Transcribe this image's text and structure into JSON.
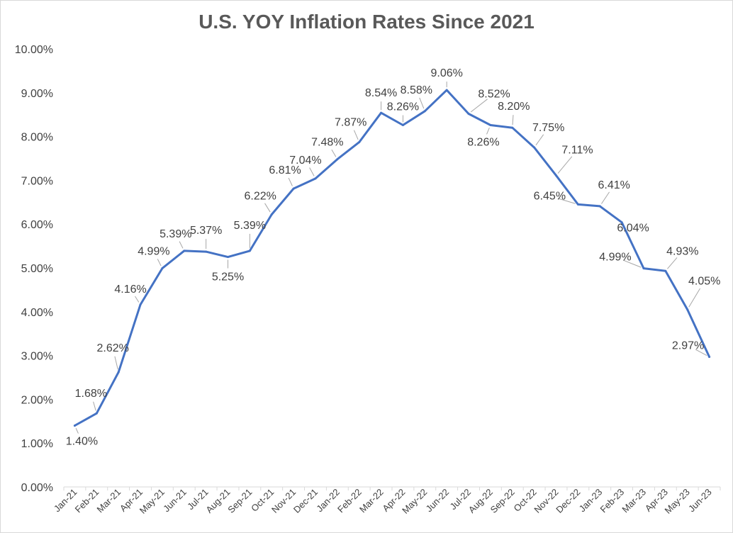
{
  "chart_data": {
    "type": "line",
    "title": "U.S. YOY Inflation Rates Since 2021",
    "xlabel": "",
    "ylabel": "",
    "ylim": [
      0,
      10
    ],
    "y_tick_labels": [
      "0.00%",
      "1.00%",
      "2.00%",
      "3.00%",
      "4.00%",
      "5.00%",
      "6.00%",
      "7.00%",
      "8.00%",
      "9.00%",
      "10.00%"
    ],
    "grid": false,
    "legend": "none",
    "categories": [
      "Jan-21",
      "Feb-21",
      "Mar-21",
      "Apr-21",
      "May-21",
      "Jun-21",
      "Jul-21",
      "Aug-21",
      "Sep-21",
      "Oct-21",
      "Nov-21",
      "Dec-21",
      "Jan-22",
      "Feb-22",
      "Mar-22",
      "Apr-22",
      "May-22",
      "Jun-22",
      "Jul-22",
      "Aug-22",
      "Sep-22",
      "Oct-22",
      "Nov-22",
      "Dec-22",
      "Jan-23",
      "Feb-23",
      "Mar-23",
      "Apr-23",
      "May-23",
      "Jun-23"
    ],
    "series": [
      {
        "values": [
          1.4,
          1.68,
          2.62,
          4.16,
          4.99,
          5.39,
          5.37,
          5.25,
          5.39,
          6.22,
          6.81,
          7.04,
          7.48,
          7.87,
          8.54,
          8.26,
          8.58,
          9.06,
          8.52,
          8.26,
          8.2,
          7.75,
          7.11,
          6.45,
          6.41,
          6.04,
          4.99,
          4.93,
          4.05,
          2.97
        ],
        "data_labels": [
          "1.40%",
          "1.68%",
          "2.62%",
          "4.16%",
          "4.99%",
          "5.39%",
          "5.37%",
          "5.25%",
          "5.39%",
          "6.22%",
          "6.81%",
          "7.04%",
          "7.48%",
          "7.87%",
          "8.54%",
          "8.26%",
          "8.58%",
          "9.06%",
          "8.52%",
          "8.26%",
          "8.20%",
          "7.75%",
          "7.11%",
          "6.45%",
          "6.41%",
          "6.04%",
          "4.99%",
          "4.93%",
          "4.05%",
          "2.97%"
        ]
      }
    ]
  },
  "colors": {
    "line": "#4472c4",
    "text": "#404040",
    "title": "#595959",
    "axis": "#d9d9d9",
    "leader": "#a6a6a6"
  }
}
